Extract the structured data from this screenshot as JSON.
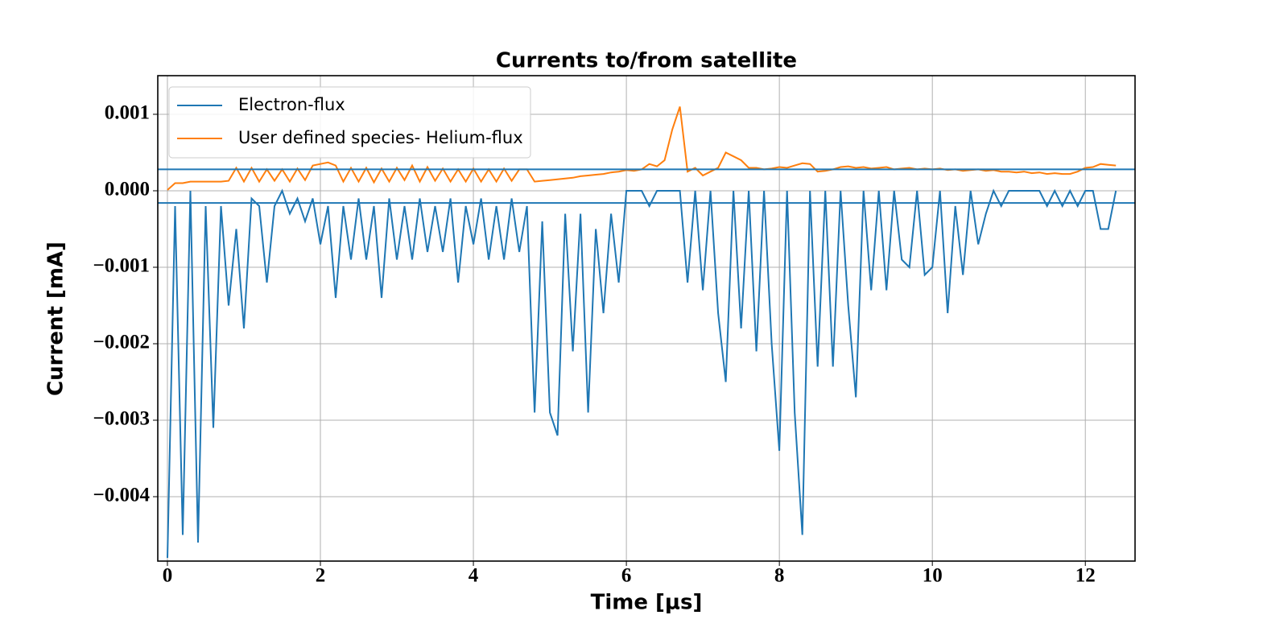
{
  "chart_data": {
    "type": "line",
    "title": "Currents to/from satellite",
    "xlabel": "Time [μs]",
    "ylabel": "Current [mA]",
    "x": [
      0.0,
      0.1,
      0.2,
      0.3,
      0.4,
      0.5,
      0.6,
      0.7,
      0.8,
      0.9,
      1.0,
      1.1,
      1.2,
      1.3,
      1.4,
      1.5,
      1.6,
      1.7,
      1.8,
      1.9,
      2.0,
      2.1,
      2.2,
      2.3,
      2.4,
      2.5,
      2.6,
      2.7,
      2.8,
      2.9,
      3.0,
      3.1,
      3.2,
      3.3,
      3.4,
      3.5,
      3.6,
      3.7,
      3.8,
      3.9,
      4.0,
      4.1,
      4.2,
      4.3,
      4.4,
      4.5,
      4.6,
      4.7,
      4.8,
      4.9,
      5.0,
      5.1,
      5.2,
      5.3,
      5.4,
      5.5,
      5.6,
      5.7,
      5.8,
      5.9,
      6.0,
      6.1,
      6.2,
      6.3,
      6.4,
      6.5,
      6.6,
      6.7,
      6.8,
      6.9,
      7.0,
      7.1,
      7.2,
      7.3,
      7.4,
      7.5,
      7.6,
      7.7,
      7.8,
      7.9,
      8.0,
      8.1,
      8.2,
      8.3,
      8.4,
      8.5,
      8.6,
      8.7,
      8.8,
      8.9,
      9.0,
      9.1,
      9.2,
      9.3,
      9.4,
      9.5,
      9.6,
      9.7,
      9.8,
      9.9,
      10.0,
      10.1,
      10.2,
      10.3,
      10.4,
      10.5,
      10.6,
      10.7,
      10.8,
      10.9,
      11.0,
      11.1,
      11.2,
      11.3,
      11.4,
      11.5,
      11.6,
      11.7,
      11.8,
      11.9,
      12.0,
      12.1,
      12.2,
      12.3,
      12.4
    ],
    "series": [
      {
        "name": "Electron-flux",
        "color": "#1f77b4",
        "values": [
          -0.0048,
          -0.0002,
          -0.0045,
          0,
          -0.0046,
          -0.0002,
          -0.0031,
          -0.0002,
          -0.0015,
          -0.0005,
          -0.0018,
          -0.0001,
          -0.0002,
          -0.0012,
          -0.0002,
          0,
          -0.0003,
          -0.0001,
          -0.0004,
          -0.0001,
          -0.0007,
          -0.0002,
          -0.0014,
          -0.0002,
          -0.0009,
          -0.0001,
          -0.0009,
          -0.0002,
          -0.0014,
          -0.0001,
          -0.0009,
          -0.0002,
          -0.0009,
          -0.0001,
          -0.0008,
          -0.0002,
          -0.0008,
          -0.0001,
          -0.0012,
          -0.0002,
          -0.0007,
          -0.0001,
          -0.0009,
          -0.0002,
          -0.0009,
          -0.0001,
          -0.0008,
          -0.0002,
          -0.0029,
          -0.0004,
          -0.0029,
          -0.0032,
          -0.0003,
          -0.0021,
          -0.0003,
          -0.0029,
          -0.0005,
          -0.0016,
          -0.0003,
          -0.0012,
          0,
          0,
          0,
          -0.0002,
          0,
          0,
          0,
          0,
          -0.0012,
          0,
          -0.0013,
          0,
          -0.0016,
          -0.0025,
          0,
          -0.0018,
          0,
          -0.0021,
          0,
          -0.002,
          -0.0034,
          0,
          -0.0029,
          -0.0045,
          0,
          -0.0023,
          0,
          -0.0023,
          0,
          -0.0015,
          -0.0027,
          0,
          -0.0013,
          0,
          -0.0013,
          0,
          -0.0009,
          -0.001,
          0,
          -0.0011,
          -0.001,
          0,
          -0.0016,
          -0.0002,
          -0.0011,
          0,
          -0.0007,
          -0.0003,
          0,
          -0.0002,
          0,
          0,
          0,
          0,
          0,
          -0.0002,
          0,
          -0.0002,
          0,
          -0.0002,
          0,
          0,
          -0.0005,
          -0.0005,
          0
        ]
      },
      {
        "name": "User defined species- Helium-flux",
        "color": "#ff7f0e",
        "values": [
          1e-05,
          0.0001,
          0.0001,
          0.00012,
          0.00012,
          0.00012,
          0.00012,
          0.00012,
          0.00013,
          0.0003,
          0.00012,
          0.0003,
          0.00012,
          0.00028,
          0.00013,
          0.00028,
          0.00012,
          0.00029,
          0.00014,
          0.00033,
          0.00035,
          0.00037,
          0.00033,
          0.00012,
          0.0003,
          0.00012,
          0.0003,
          0.00011,
          0.00029,
          0.00012,
          0.0003,
          0.00014,
          0.00033,
          0.00012,
          0.00031,
          0.00013,
          0.00029,
          0.00012,
          0.00028,
          0.00012,
          0.00029,
          0.00012,
          0.00028,
          0.00012,
          0.00029,
          0.00013,
          0.00028,
          0.00028,
          0.00012,
          0.00013,
          0.00014,
          0.00015,
          0.00016,
          0.00017,
          0.00019,
          0.0002,
          0.00021,
          0.00022,
          0.00024,
          0.00025,
          0.00027,
          0.00026,
          0.00028,
          0.00035,
          0.00032,
          0.0004,
          0.0008,
          0.0011,
          0.00025,
          0.0003,
          0.0002,
          0.00025,
          0.0003,
          0.0005,
          0.00045,
          0.0004,
          0.0003,
          0.0003,
          0.00028,
          0.00029,
          0.00031,
          0.0003,
          0.00033,
          0.00036,
          0.00035,
          0.00025,
          0.00026,
          0.00028,
          0.00031,
          0.00032,
          0.0003,
          0.00031,
          0.00029,
          0.0003,
          0.00031,
          0.00028,
          0.00029,
          0.0003,
          0.00028,
          0.00029,
          0.00028,
          0.00029,
          0.00027,
          0.00028,
          0.00026,
          0.00027,
          0.00028,
          0.00026,
          0.00027,
          0.00025,
          0.00025,
          0.00024,
          0.00025,
          0.00023,
          0.00024,
          0.00022,
          0.00023,
          0.00022,
          0.00022,
          0.00025,
          0.0003,
          0.00031,
          0.00035,
          0.00034,
          0.00033
        ]
      }
    ],
    "hlines": [
      0.00028,
      -0.00016
    ],
    "hline_color": "#1f77b4",
    "xlim": [
      -0.126,
      12.65
    ],
    "ylim": [
      -0.004842,
      0.001505
    ],
    "xticks": [
      0,
      2,
      4,
      6,
      8,
      10,
      12
    ],
    "yticks": [
      0.001,
      {
        "value": 0,
        "label": "0.000"
      },
      {
        "value": -0.001,
        "label": "−0.001"
      },
      {
        "value": -0.002,
        "label": "−0.002"
      },
      {
        "value": -0.003,
        "label": "−0.003"
      },
      {
        "value": -0.004,
        "label": "−0.004"
      }
    ],
    "grid": true,
    "legend": "upper left"
  }
}
